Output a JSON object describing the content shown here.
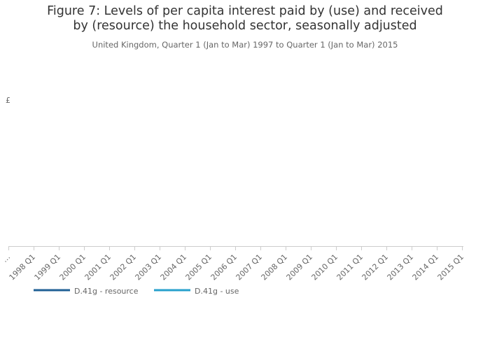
{
  "chart_data": {
    "type": "line",
    "title": "Figure 7: Levels of per capita interest paid by (use) and received by (resource) the household sector, seasonally adjusted",
    "subtitle": "United Kingdom, Quarter 1 (Jan to Mar) 1997 to Quarter 1 (Jan to Mar) 2015",
    "y_label": "£",
    "categories": [
      "…",
      "1998 Q1",
      "1999 Q1",
      "2000 Q1",
      "2001 Q1",
      "2002 Q1",
      "2003 Q1",
      "2004 Q1",
      "2005 Q1",
      "2006 Q1",
      "2007 Q1",
      "2008 Q1",
      "2009 Q1",
      "2010 Q1",
      "2011 Q1",
      "2012 Q1",
      "2013 Q1",
      "2014 Q1",
      "2015 Q1"
    ],
    "series": [
      {
        "name": "D.41g - resource",
        "color": "#206095",
        "values": [
          null,
          null,
          null,
          null,
          null,
          null,
          null,
          null,
          null,
          null,
          null,
          null,
          null,
          null,
          null,
          null,
          null,
          null,
          null
        ]
      },
      {
        "name": "D.41g - use",
        "color": "#27a0cc",
        "values": [
          null,
          null,
          null,
          null,
          null,
          null,
          null,
          null,
          null,
          null,
          null,
          null,
          null,
          null,
          null,
          null,
          null,
          null,
          null
        ]
      }
    ]
  }
}
